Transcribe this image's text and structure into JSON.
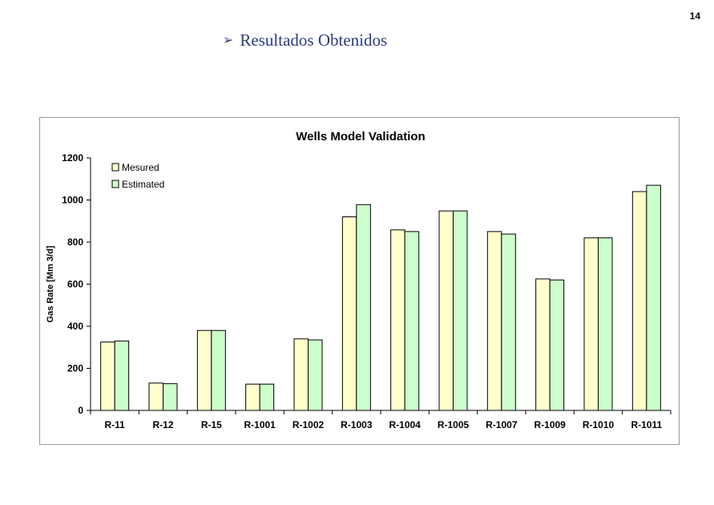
{
  "page": {
    "number": "14"
  },
  "heading": {
    "bullet": "➢",
    "text": "Resultados Obtenidos"
  },
  "colors": {
    "heading": "#2e3a87",
    "mesured_fill": "#ffffcc",
    "estimated_fill": "#ccffcc",
    "bar_stroke": "#000000"
  },
  "chart_data": {
    "type": "bar",
    "title": "Wells Model Validation",
    "xlabel": "",
    "ylabel": "Gas Rate [Mm 3/d]",
    "ylim": [
      0,
      1200
    ],
    "yticks": [
      0,
      200,
      400,
      600,
      800,
      1000,
      1200
    ],
    "grid": false,
    "legend_position": "top-left",
    "categories": [
      "R-11",
      "R-12",
      "R-15",
      "R-1001",
      "R-1002",
      "R-1003",
      "R-1004",
      "R-1005",
      "R-1007",
      "R-1009",
      "R-1010",
      "R-1011"
    ],
    "series": [
      {
        "name": "Mesured",
        "color": "#ffffcc",
        "values": [
          325,
          130,
          380,
          125,
          340,
          920,
          858,
          948,
          850,
          625,
          820,
          1040
        ]
      },
      {
        "name": "Estimated",
        "color": "#ccffcc",
        "values": [
          330,
          127,
          380,
          125,
          335,
          978,
          850,
          948,
          838,
          620,
          820,
          1070
        ]
      }
    ]
  }
}
